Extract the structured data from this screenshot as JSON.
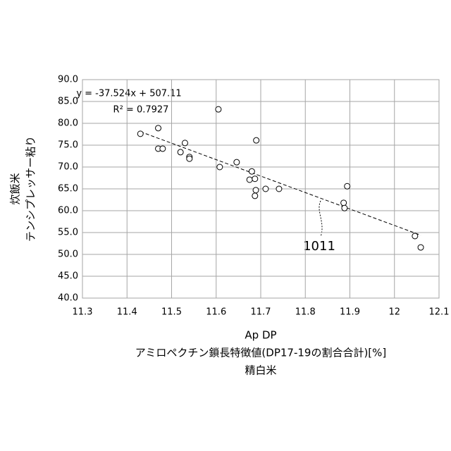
{
  "chart_data": {
    "type": "scatter",
    "x_label_lines": [
      "Ap DP",
      "アミロペクチン鎖長特徴値(DP17-19の割合合計)[%]",
      "精白米"
    ],
    "y_label_lines": [
      "炊飯米",
      "テンシプレッサー粘り"
    ],
    "series": [
      {
        "color": "#000000",
        "x": [
          11.43,
          11.47,
          11.47,
          11.48,
          11.53,
          11.52,
          11.54,
          11.54,
          11.605,
          11.608,
          11.646,
          11.69,
          11.68,
          11.675,
          11.687,
          11.689,
          11.687,
          11.711,
          11.741,
          11.894,
          11.886,
          11.888,
          12.046,
          12.059
        ],
        "values": [
          77.6,
          78.9,
          74.2,
          74.2,
          75.5,
          73.4,
          72.3,
          71.9,
          83.2,
          70.0,
          71.1,
          76.1,
          69.0,
          67.1,
          67.3,
          64.7,
          63.4,
          65.0,
          65.0,
          65.6,
          61.8,
          60.6,
          54.2,
          51.6
        ]
      }
    ],
    "trendline": {
      "equation": "y = -37.524x + 507.11",
      "r2": "R² = 0.7927"
    },
    "annotation": "1011",
    "xlim": [
      11.3,
      12.1
    ],
    "xticks": [
      11.3,
      11.4,
      11.5,
      11.6,
      11.7,
      11.8,
      11.9,
      12,
      12.1
    ],
    "ylim": [
      40,
      90
    ],
    "yticks": [
      {
        "value": 40,
        "label": "40.0"
      },
      {
        "value": 45,
        "label": "45.0"
      },
      {
        "value": 50,
        "label": "50.0"
      },
      {
        "value": 55,
        "label": "55.0"
      },
      {
        "value": 60,
        "label": "60.0"
      },
      {
        "value": 65,
        "label": "65.0"
      },
      {
        "value": 70,
        "label": "70.0"
      },
      {
        "value": 75,
        "label": "75.0"
      },
      {
        "value": 80,
        "label": "80.0"
      },
      {
        "value": 85,
        "label": "85.0"
      },
      {
        "value": 90,
        "label": "90.0"
      }
    ],
    "grid": true
  }
}
